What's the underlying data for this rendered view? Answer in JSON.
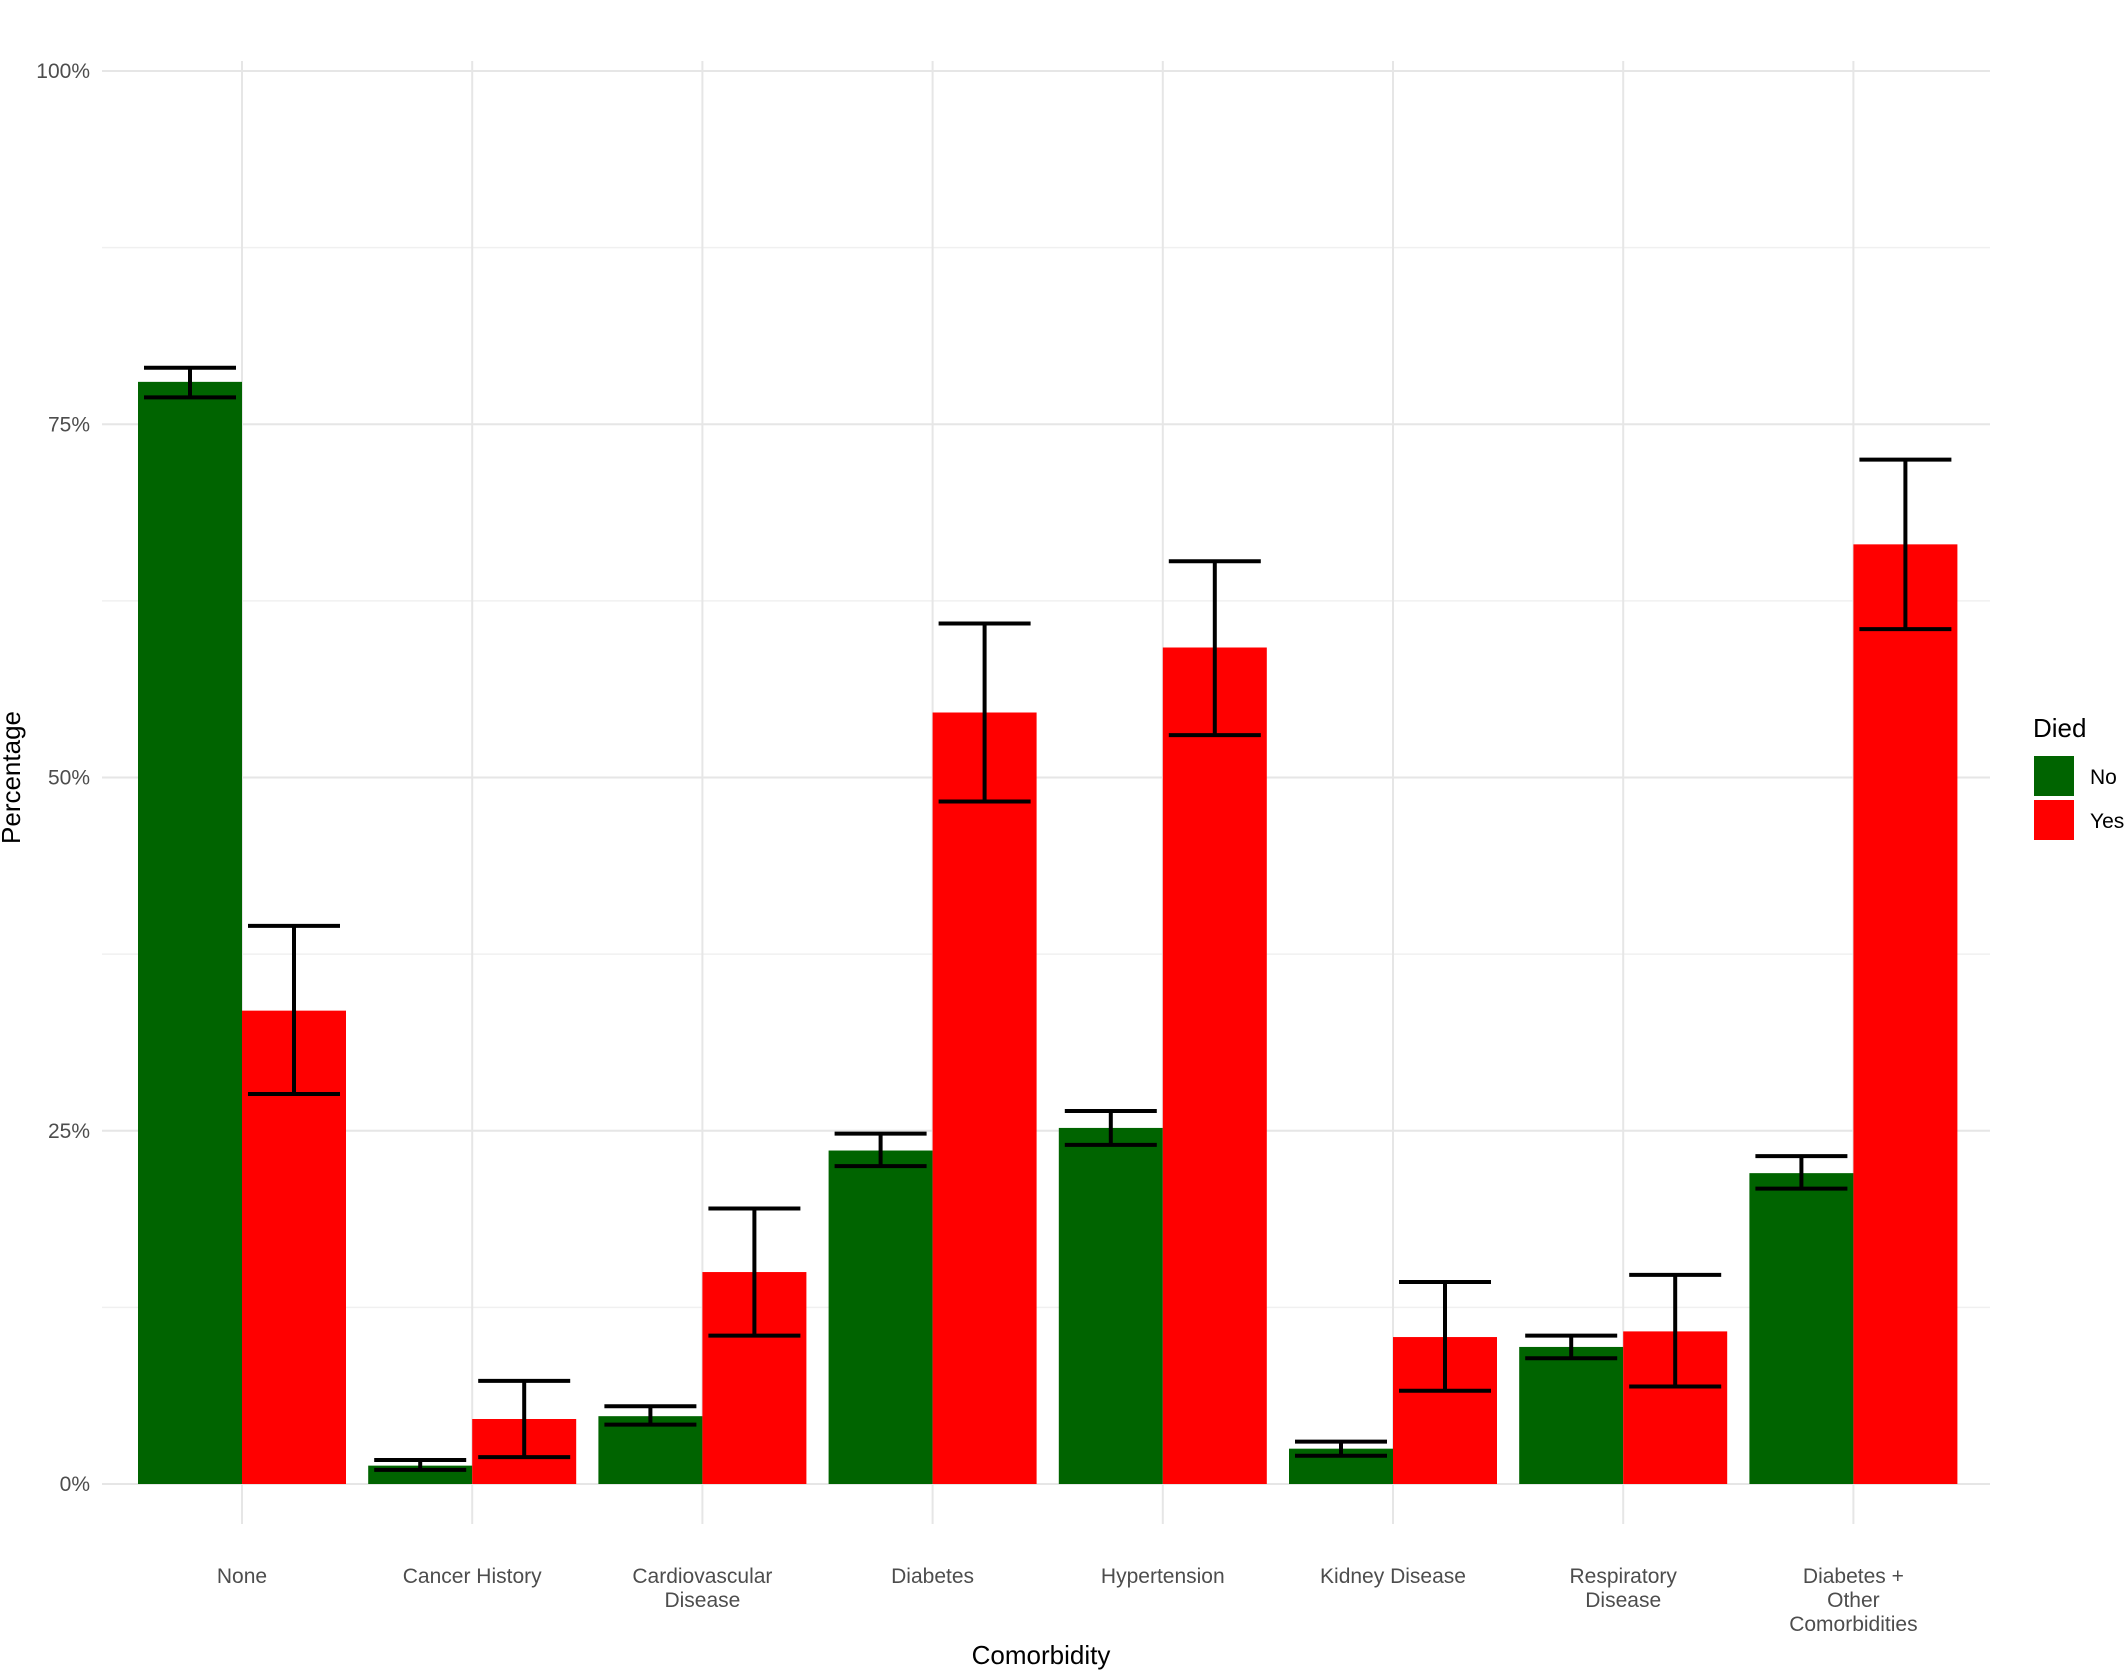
{
  "chart_data": {
    "type": "bar",
    "xlabel": "Comorbidity",
    "ylabel": "Percentage",
    "ylim": [
      0,
      1
    ],
    "y_ticks": [
      {
        "value": 0,
        "label": "0%"
      },
      {
        "value": 0.25,
        "label": "25%"
      },
      {
        "value": 0.5,
        "label": "50%"
      },
      {
        "value": 0.75,
        "label": "75%"
      },
      {
        "value": 1.0,
        "label": "100%"
      }
    ],
    "categories": [
      [
        "None"
      ],
      [
        "Cancer History"
      ],
      [
        "Cardiovascular",
        "Disease"
      ],
      [
        "Diabetes"
      ],
      [
        "Hypertension"
      ],
      [
        "Kidney Disease"
      ],
      [
        "Respiratory",
        "Disease"
      ],
      [
        "Diabetes +",
        "Other",
        "Comorbidities"
      ]
    ],
    "grid": true,
    "legend": {
      "title": "Died",
      "position": "right",
      "entries": [
        "No",
        "Yes"
      ]
    },
    "series": [
      {
        "name": "No",
        "color": "#006400",
        "values": [
          0.78,
          0.013,
          0.048,
          0.236,
          0.252,
          0.025,
          0.097,
          0.22
        ],
        "err_low": [
          0.769,
          0.01,
          0.042,
          0.225,
          0.24,
          0.02,
          0.089,
          0.209
        ],
        "err_high": [
          0.79,
          0.017,
          0.055,
          0.248,
          0.264,
          0.03,
          0.105,
          0.232
        ]
      },
      {
        "name": "Yes",
        "color": "#ff0000",
        "values": [
          0.335,
          0.046,
          0.15,
          0.546,
          0.592,
          0.104,
          0.108,
          0.665
        ],
        "err_low": [
          0.276,
          0.019,
          0.105,
          0.483,
          0.53,
          0.066,
          0.069,
          0.605
        ],
        "err_high": [
          0.395,
          0.073,
          0.195,
          0.609,
          0.653,
          0.143,
          0.148,
          0.725
        ]
      }
    ]
  }
}
